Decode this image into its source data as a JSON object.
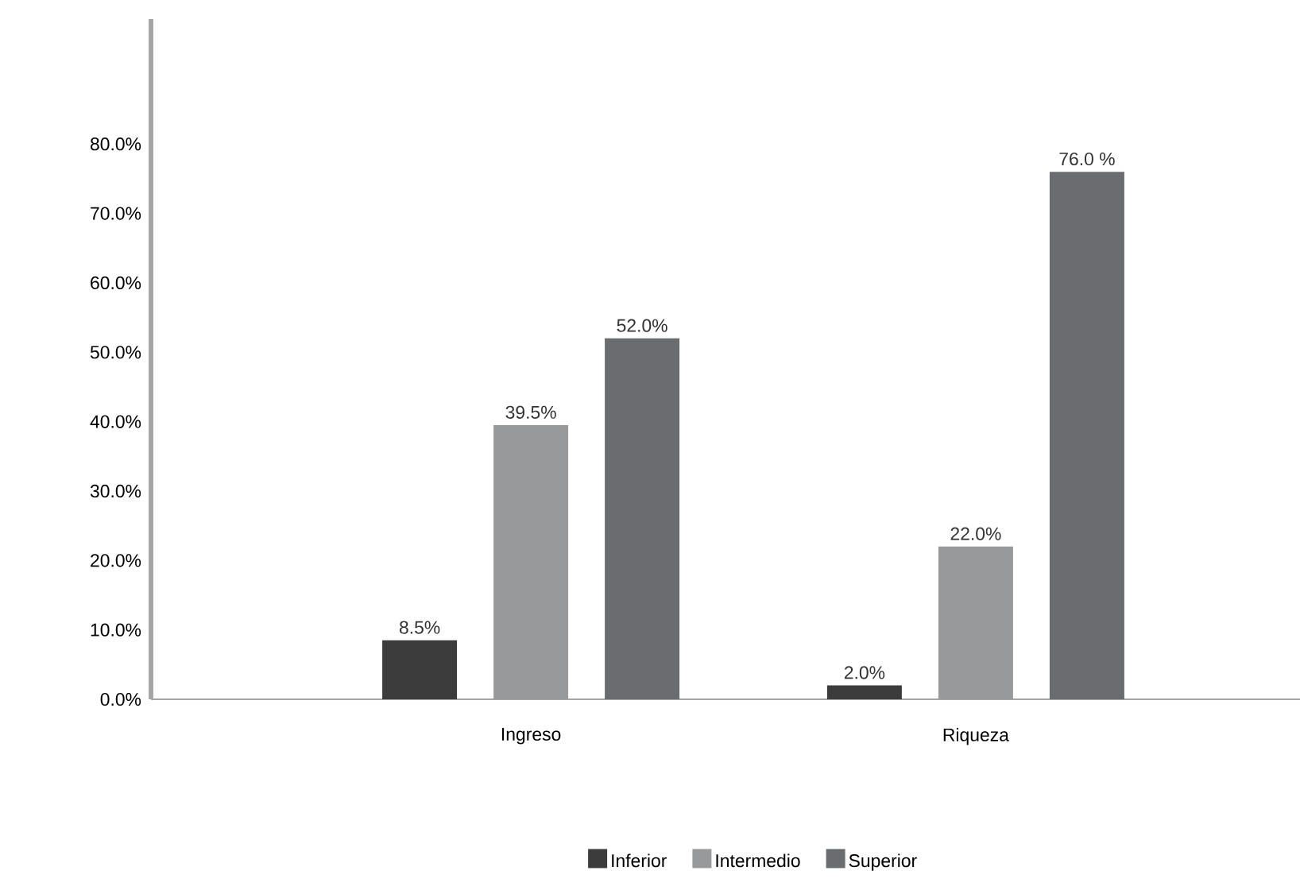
{
  "chart_data": {
    "type": "bar",
    "categories": [
      "Ingreso",
      "Riqueza"
    ],
    "series": [
      {
        "name": "Inferior",
        "color": "#3c3c3c",
        "values": [
          8.5,
          2.0
        ],
        "value_labels": [
          "8.5%",
          "2.0%"
        ]
      },
      {
        "name": "Intermedio",
        "color": "#98999b",
        "values": [
          39.5,
          22.0
        ],
        "value_labels": [
          "39.5%",
          "22.0%"
        ]
      },
      {
        "name": "Superior",
        "color": "#6b6c70",
        "values": [
          52.0,
          76.0
        ],
        "value_labels": [
          "52.0%",
          "76.0 %"
        ]
      }
    ],
    "ylim": [
      0,
      98
    ],
    "yticks": [
      {
        "value": 0,
        "label": "0.0%"
      },
      {
        "value": 10,
        "label": "10.0%"
      },
      {
        "value": 20,
        "label": "20.0%"
      },
      {
        "value": 30,
        "label": "30.0%"
      },
      {
        "value": 40,
        "label": "40.0%"
      },
      {
        "value": 50,
        "label": "50.0%"
      },
      {
        "value": 60,
        "label": "60.0%"
      },
      {
        "value": 70,
        "label": "70.0%"
      },
      {
        "value": 80,
        "label": "80.0%"
      }
    ],
    "grid": false,
    "legend": "bottom"
  }
}
